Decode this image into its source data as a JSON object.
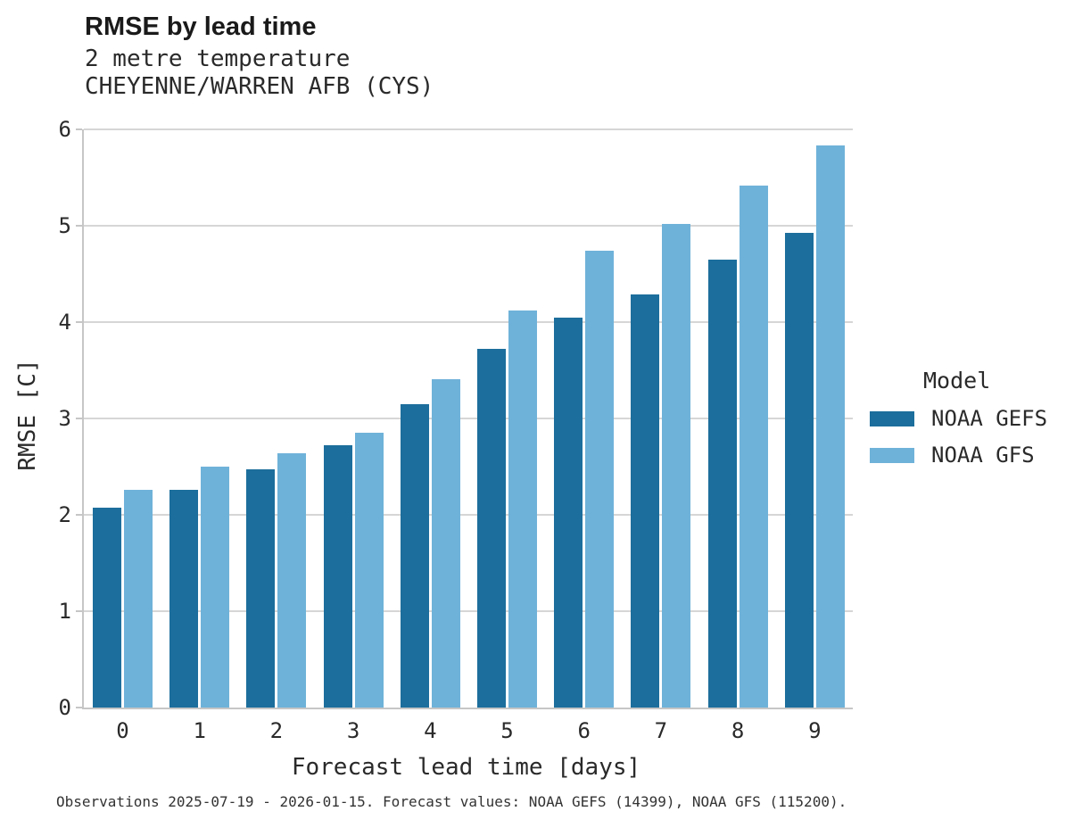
{
  "chart_data": {
    "type": "bar",
    "title": "RMSE by lead time",
    "subtitle": [
      "2 metre temperature",
      "CHEYENNE/WARREN AFB (CYS)"
    ],
    "categories": [
      "0",
      "1",
      "2",
      "3",
      "4",
      "5",
      "6",
      "7",
      "8",
      "9"
    ],
    "series": [
      {
        "name": "NOAA GEFS",
        "color": "#1c6e9c",
        "values": [
          2.07,
          2.26,
          2.47,
          2.72,
          3.15,
          3.72,
          4.05,
          4.29,
          4.65,
          4.93
        ]
      },
      {
        "name": "NOAA GFS",
        "color": "#6fb2d9",
        "values": [
          2.26,
          2.5,
          2.64,
          2.85,
          3.41,
          4.12,
          4.74,
          5.02,
          5.42,
          5.83
        ]
      }
    ],
    "xlabel": "Forecast lead time [days]",
    "ylabel": "RMSE [C]",
    "ylim": [
      0,
      6
    ],
    "yticks": [
      0,
      1,
      2,
      3,
      4,
      5,
      6
    ],
    "grid": true,
    "legend_title": "Model",
    "legend_position": "right",
    "caption": "Observations 2025-07-19 - 2026-01-15. Forecast values: NOAA GEFS (14399), NOAA GFS (115200)."
  },
  "colors": {
    "gefs": "#1c6e9c",
    "gfs": "#6fb2d9",
    "gridline": "#d6d6d6",
    "axis": "#c6c6c6",
    "text": "#2a2a2a"
  }
}
